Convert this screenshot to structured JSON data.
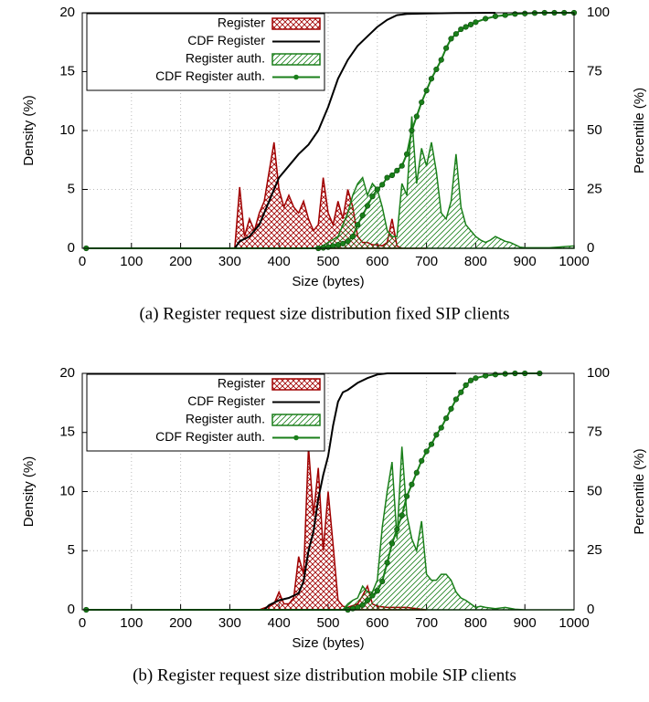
{
  "chart_data": [
    {
      "type": "line",
      "caption": "(a) Register request size distribution fixed SIP clients",
      "xlabel": "Size (bytes)",
      "ylabel": "Density (%)",
      "y2label": "Percentile (%)",
      "xlim": [
        0,
        1000
      ],
      "xticks": [
        0,
        100,
        200,
        300,
        400,
        500,
        600,
        700,
        800,
        900,
        1000
      ],
      "ylim": [
        0,
        20
      ],
      "yticks": [
        0,
        5,
        10,
        15,
        20
      ],
      "y2lim": [
        0,
        100
      ],
      "y2ticks": [
        0,
        25,
        50,
        75,
        100
      ],
      "grid": true,
      "legend": "upper left",
      "series": [
        {
          "name": "Register",
          "kind": "area",
          "hatch": "cross",
          "color": "#a00000",
          "x": [
            300,
            310,
            320,
            330,
            340,
            350,
            360,
            370,
            380,
            390,
            400,
            410,
            420,
            430,
            440,
            450,
            460,
            470,
            480,
            490,
            500,
            510,
            520,
            530,
            540,
            550,
            560,
            570,
            580,
            590,
            600,
            610,
            620,
            630,
            640,
            650,
            700
          ],
          "values": [
            0,
            0,
            5.2,
            1,
            2.5,
            1.5,
            3,
            4,
            6.5,
            9,
            5,
            3.5,
            4.5,
            3.5,
            3,
            4,
            2.5,
            1.5,
            2,
            6,
            3,
            2,
            4,
            2.5,
            5,
            3.5,
            1,
            0.5,
            0.5,
            0.3,
            0.3,
            0.2,
            0.5,
            2.5,
            0.2,
            0,
            0
          ]
        },
        {
          "name": "CDF Register",
          "kind": "line",
          "axis": "y2",
          "color": "#000000",
          "x": [
            8,
            310,
            320,
            340,
            360,
            380,
            400,
            420,
            440,
            460,
            480,
            490,
            500,
            520,
            540,
            560,
            580,
            600,
            620,
            640,
            660,
            700,
            760,
            840
          ],
          "values": [
            0,
            0,
            3,
            5,
            10,
            20,
            30,
            35,
            40,
            44,
            50,
            55,
            60,
            72,
            80,
            86,
            90,
            94,
            97,
            99,
            99.5,
            99.7,
            99.9,
            100
          ]
        },
        {
          "name": "Register auth.",
          "kind": "area",
          "hatch": "diagonal",
          "color": "#1a7f1a",
          "x": [
            470,
            480,
            500,
            520,
            540,
            550,
            560,
            570,
            580,
            590,
            600,
            610,
            620,
            630,
            640,
            650,
            660,
            670,
            680,
            690,
            700,
            710,
            720,
            730,
            740,
            750,
            760,
            770,
            780,
            790,
            800,
            810,
            820,
            830,
            840,
            850,
            860,
            870,
            880,
            890,
            900,
            950,
            1000
          ],
          "values": [
            0,
            0,
            0.5,
            1,
            3,
            4.5,
            5.5,
            6,
            4.5,
            5.5,
            5,
            3.5,
            1.5,
            1,
            1,
            5.5,
            4.5,
            11.2,
            5.5,
            8.5,
            7,
            9,
            6.5,
            3,
            2.5,
            4,
            8,
            3.5,
            2,
            1.5,
            1,
            0.7,
            0.5,
            0.7,
            1,
            0.8,
            0.6,
            0.5,
            0.3,
            0.1,
            0.05,
            0.05,
            0.2
          ]
        },
        {
          "name": "CDF Register auth.",
          "kind": "line",
          "axis": "y2",
          "markers": true,
          "color": "#1a7f1a",
          "x": [
            8,
            480,
            490,
            500,
            510,
            520,
            530,
            540,
            550,
            560,
            570,
            580,
            590,
            600,
            610,
            620,
            630,
            640,
            650,
            660,
            670,
            680,
            690,
            700,
            710,
            720,
            730,
            740,
            750,
            760,
            770,
            780,
            790,
            800,
            820,
            840,
            860,
            880,
            900,
            920,
            940,
            960,
            980,
            1000
          ],
          "values": [
            0,
            0,
            0.2,
            0.5,
            1,
            1.5,
            2,
            3,
            5,
            10,
            14,
            18,
            22,
            25,
            27,
            30,
            31,
            33,
            35,
            40,
            50,
            56,
            62,
            67,
            72,
            76,
            80,
            85,
            89,
            91,
            93,
            94,
            95,
            96,
            97.5,
            98.5,
            99,
            99.5,
            99.7,
            99.9,
            100,
            100,
            100,
            100
          ]
        }
      ]
    },
    {
      "type": "line",
      "caption": "(b) Register request size distribution mobile SIP clients",
      "xlabel": "Size (bytes)",
      "ylabel": "Density (%)",
      "y2label": "Percentile (%)",
      "xlim": [
        0,
        1000
      ],
      "xticks": [
        0,
        100,
        200,
        300,
        400,
        500,
        600,
        700,
        800,
        900,
        1000
      ],
      "ylim": [
        0,
        20
      ],
      "yticks": [
        0,
        5,
        10,
        15,
        20
      ],
      "y2lim": [
        0,
        100
      ],
      "y2ticks": [
        0,
        25,
        50,
        75,
        100
      ],
      "grid": true,
      "legend": "upper left",
      "series": [
        {
          "name": "Register",
          "kind": "area",
          "hatch": "cross",
          "color": "#a00000",
          "x": [
            360,
            380,
            390,
            400,
            410,
            420,
            430,
            440,
            450,
            460,
            470,
            480,
            490,
            500,
            510,
            520,
            530,
            540,
            560,
            570,
            580,
            590,
            600,
            620,
            640,
            660,
            680,
            700
          ],
          "values": [
            0,
            0.3,
            0.5,
            1.5,
            0.5,
            0.5,
            1,
            4.5,
            3,
            13.8,
            8,
            12,
            5,
            10,
            5.5,
            0.8,
            0.3,
            0.2,
            0.5,
            1.2,
            2,
            0.5,
            0.3,
            0.2,
            0.2,
            0.2,
            0.1,
            0
          ]
        },
        {
          "name": "CDF Register",
          "kind": "line",
          "axis": "y2",
          "color": "#000000",
          "x": [
            8,
            370,
            380,
            400,
            420,
            440,
            450,
            460,
            470,
            480,
            490,
            500,
            510,
            520,
            530,
            540,
            560,
            580,
            600,
            620,
            760
          ],
          "values": [
            0,
            0,
            2,
            4,
            5,
            7,
            12,
            25,
            33,
            47,
            57,
            65,
            78,
            88,
            92,
            93,
            96,
            98,
            99.5,
            100,
            100
          ]
        },
        {
          "name": "Register auth.",
          "kind": "area",
          "hatch": "diagonal",
          "color": "#1a7f1a",
          "x": [
            530,
            540,
            550,
            560,
            570,
            580,
            590,
            600,
            610,
            620,
            630,
            640,
            650,
            660,
            670,
            680,
            690,
            700,
            710,
            720,
            730,
            740,
            750,
            760,
            770,
            780,
            790,
            800,
            810,
            820,
            840,
            860,
            880,
            900,
            1000
          ],
          "values": [
            0,
            0.5,
            0.8,
            1,
            2,
            1.5,
            1.5,
            2.5,
            7,
            10,
            12.5,
            6,
            13.8,
            8,
            6,
            5,
            7.5,
            3,
            2.5,
            2.5,
            3,
            3,
            2.5,
            1.5,
            1,
            0.8,
            0.5,
            0.2,
            0.3,
            0.2,
            0.1,
            0.2,
            0.05,
            0,
            0
          ]
        },
        {
          "name": "CDF Register auth.",
          "kind": "line",
          "axis": "y2",
          "markers": true,
          "color": "#1a7f1a",
          "x": [
            8,
            540,
            550,
            560,
            570,
            580,
            590,
            600,
            610,
            620,
            630,
            640,
            650,
            660,
            670,
            680,
            690,
            700,
            710,
            720,
            730,
            740,
            750,
            760,
            770,
            780,
            790,
            800,
            820,
            840,
            860,
            880,
            900,
            930
          ],
          "values": [
            0,
            0,
            0.5,
            1,
            2,
            4,
            6,
            8,
            12,
            20,
            28,
            34,
            40,
            48,
            53,
            58,
            63,
            67,
            70,
            74,
            77,
            81,
            85,
            89,
            92,
            95,
            97,
            98,
            99,
            99.5,
            99.8,
            100,
            100,
            100
          ]
        }
      ]
    }
  ]
}
